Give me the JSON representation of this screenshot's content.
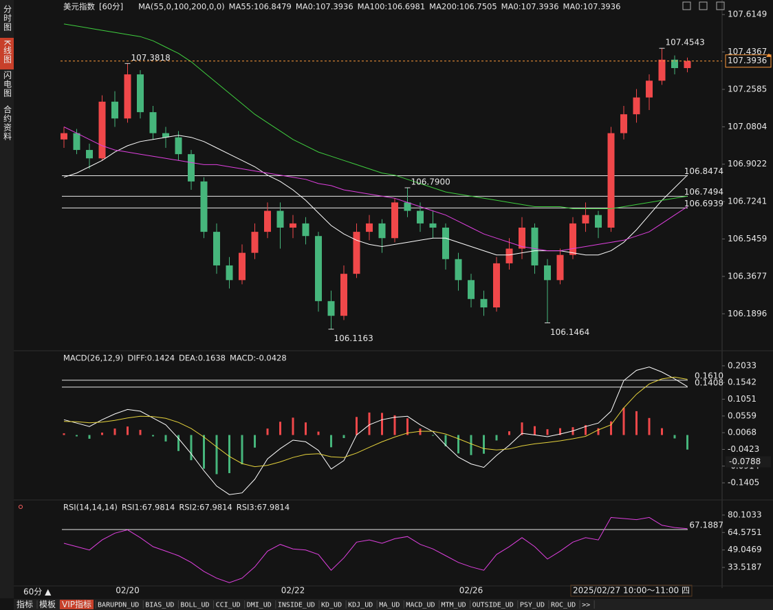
{
  "sidebar_tabs": [
    "分时图",
    "K线图",
    "闪电图",
    "合约资料"
  ],
  "active_tab": 1,
  "chart_data": [
    {
      "type": "candlestick",
      "legend": [
        {
          "text": "美元指数",
          "color": "#ffffff"
        },
        {
          "text": "[60分]",
          "color": "#ff9a3c"
        },
        {
          "text": "MA(55,0,100,200,0,0)",
          "color": "#ffffff"
        },
        {
          "text": "MA55:106.8479",
          "color": "#ffffff"
        },
        {
          "text": "MA0:107.3936",
          "color": "#e6d33c"
        },
        {
          "text": "MA100:106.6981",
          "color": "#e040e0"
        },
        {
          "text": "MA200:106.7505",
          "color": "#3fcf3f"
        },
        {
          "text": "MA0:107.3936",
          "color": "#9a9a9a"
        },
        {
          "text": "MA0:107.3936",
          "color": "#ff4a4a"
        }
      ],
      "categories": [
        null,
        null,
        null,
        null,
        null,
        "02/20",
        null,
        null,
        null,
        null,
        null,
        null,
        null,
        null,
        null,
        null,
        null,
        null,
        "02/22",
        null,
        null,
        null,
        null,
        null,
        null,
        null,
        null,
        null,
        null,
        null,
        null,
        null,
        "02/26",
        null,
        null,
        null,
        null,
        null,
        null,
        null,
        null,
        null,
        null,
        null,
        null,
        null,
        null,
        null,
        null,
        null
      ],
      "ylim": [
        106.03,
        107.645
      ],
      "yticks": [
        107.6149,
        107.4367,
        107.2585,
        107.0804,
        106.9022,
        106.7241,
        106.5459,
        106.3677,
        106.1896
      ],
      "up_color": "#f0484a",
      "down_color": "#46b67c",
      "open": [
        107.02,
        107.05,
        106.97,
        106.93,
        107.2,
        107.12,
        107.33,
        107.15,
        107.05,
        107.03,
        106.95,
        106.82,
        106.58,
        106.42,
        106.35,
        106.48,
        106.58,
        106.68,
        106.6,
        106.62,
        106.56,
        106.25,
        106.18,
        106.38,
        106.58,
        106.62,
        106.55,
        106.72,
        106.68,
        106.62,
        106.6,
        106.45,
        106.35,
        106.26,
        106.22,
        106.43,
        106.5,
        106.6,
        106.42,
        106.35,
        106.47,
        106.62,
        106.66,
        106.6,
        107.05,
        107.14,
        107.22,
        107.3,
        107.4,
        107.36
      ],
      "high": [
        107.08,
        107.07,
        107.0,
        107.23,
        107.25,
        107.3818,
        107.35,
        107.18,
        107.08,
        107.06,
        106.97,
        106.84,
        106.62,
        106.46,
        106.52,
        106.62,
        106.72,
        106.72,
        106.66,
        106.65,
        106.58,
        106.3,
        106.42,
        106.62,
        106.66,
        106.64,
        106.74,
        106.79,
        106.72,
        106.68,
        106.62,
        106.48,
        106.38,
        106.3,
        106.46,
        106.55,
        106.65,
        106.62,
        106.45,
        106.5,
        106.65,
        106.72,
        106.68,
        107.08,
        107.18,
        107.26,
        107.33,
        107.4543,
        107.42,
        107.41
      ],
      "low": [
        106.98,
        106.95,
        106.88,
        106.92,
        107.08,
        107.1,
        107.12,
        107.02,
        106.98,
        106.92,
        106.78,
        106.55,
        106.38,
        106.31,
        106.33,
        106.45,
        106.55,
        106.5,
        106.55,
        106.52,
        106.2,
        106.1163,
        106.16,
        106.36,
        106.54,
        106.48,
        106.53,
        106.65,
        106.58,
        106.55,
        106.4,
        106.3,
        106.22,
        106.18,
        106.2,
        106.4,
        106.45,
        106.38,
        106.1464,
        106.33,
        106.45,
        106.58,
        106.55,
        106.58,
        107.02,
        107.1,
        107.16,
        107.28,
        107.33,
        107.34
      ],
      "close": [
        107.05,
        106.97,
        106.93,
        107.2,
        107.12,
        107.33,
        107.15,
        107.05,
        107.03,
        106.95,
        106.82,
        106.58,
        106.42,
        106.35,
        106.48,
        106.58,
        106.68,
        106.6,
        106.62,
        106.56,
        106.25,
        106.18,
        106.38,
        106.58,
        106.62,
        106.55,
        106.72,
        106.68,
        106.62,
        106.6,
        106.45,
        106.35,
        106.26,
        106.22,
        106.43,
        106.5,
        106.6,
        106.42,
        106.35,
        106.47,
        106.62,
        106.66,
        106.6,
        107.05,
        107.14,
        107.22,
        107.3,
        107.4,
        107.36,
        107.3936
      ],
      "lines": [
        {
          "color": "#ffffff",
          "values": [
            106.84,
            106.86,
            106.89,
            106.92,
            106.96,
            106.99,
            107.01,
            107.02,
            107.03,
            107.04,
            107.03,
            107.01,
            106.98,
            106.95,
            106.92,
            106.89,
            106.85,
            106.82,
            106.78,
            106.73,
            106.67,
            106.61,
            106.57,
            106.54,
            106.52,
            106.51,
            106.52,
            106.53,
            106.54,
            106.55,
            106.55,
            106.53,
            106.51,
            106.49,
            106.47,
            106.47,
            106.48,
            106.49,
            106.49,
            106.49,
            106.48,
            106.47,
            106.47,
            106.49,
            106.53,
            106.59,
            106.66,
            106.73,
            106.79,
            106.85
          ]
        },
        {
          "color": "#e040e0",
          "values": [
            107.08,
            107.05,
            107.02,
            106.99,
            106.97,
            106.96,
            106.95,
            106.94,
            106.93,
            106.92,
            106.91,
            106.9,
            106.9,
            106.89,
            106.88,
            106.87,
            106.86,
            106.85,
            106.84,
            106.83,
            106.81,
            106.8,
            106.78,
            106.77,
            106.76,
            106.75,
            106.74,
            106.72,
            106.7,
            106.68,
            106.66,
            106.63,
            106.6,
            106.57,
            106.55,
            106.53,
            106.51,
            106.5,
            106.49,
            106.49,
            106.5,
            106.51,
            106.52,
            106.53,
            106.54,
            106.56,
            106.58,
            106.62,
            106.66,
            106.7
          ]
        },
        {
          "color": "#3fcf3f",
          "values": [
            107.57,
            107.56,
            107.55,
            107.54,
            107.53,
            107.52,
            107.51,
            107.49,
            107.46,
            107.43,
            107.39,
            107.34,
            107.29,
            107.24,
            107.19,
            107.14,
            107.1,
            107.06,
            107.02,
            106.99,
            106.96,
            106.94,
            106.92,
            106.9,
            106.88,
            106.86,
            106.85,
            106.83,
            106.81,
            106.79,
            106.77,
            106.76,
            106.75,
            106.74,
            106.73,
            106.72,
            106.71,
            106.7,
            106.7,
            106.7,
            106.69,
            106.69,
            106.69,
            106.69,
            106.7,
            106.71,
            106.72,
            106.73,
            106.74,
            106.75
          ]
        }
      ],
      "hlines": [
        106.8474,
        106.7494,
        106.6939
      ],
      "last_price": 107.3936,
      "last_price_color": "#ff9a3c",
      "annotations": {
        "highs": [
          107.3818,
          {
            "value": 106.79,
            "label": "106.7900"
          },
          107.4543
        ],
        "lows": [
          106.1163,
          106.1464
        ]
      }
    },
    {
      "type": "macd",
      "legend": [
        {
          "text": "MACD(26,12,9)",
          "color": "#ffffff"
        },
        {
          "text": "DIFF:0.1424",
          "color": "#ffffff"
        },
        {
          "text": "DEA:0.1638",
          "color": "#e6d33c"
        },
        {
          "text": "MACD:-0.0428",
          "color": "#e040e0"
        }
      ],
      "ylim": [
        -0.1767,
        0.2375
      ],
      "yticks": [
        0.2033,
        0.1542,
        0.1051,
        0.0559,
        0.0068,
        -0.0423,
        -0.0914,
        -0.1405
      ],
      "series": [
        {
          "color": "#ffffff",
          "values": [
            0.045,
            0.035,
            0.025,
            0.045,
            0.062,
            0.075,
            0.07,
            0.05,
            0.03,
            -0.01,
            -0.055,
            -0.105,
            -0.15,
            -0.175,
            -0.17,
            -0.13,
            -0.07,
            -0.04,
            -0.015,
            -0.02,
            -0.045,
            -0.1,
            -0.075,
            0.0,
            0.03,
            0.045,
            0.052,
            0.055,
            0.03,
            0.01,
            -0.03,
            -0.065,
            -0.085,
            -0.095,
            -0.06,
            -0.03,
            0.005,
            0.0,
            -0.005,
            0.003,
            0.012,
            0.025,
            0.035,
            0.07,
            0.16,
            0.19,
            0.2,
            0.185,
            0.165,
            0.1424
          ]
        },
        {
          "color": "#e6d33c",
          "values": [
            0.04,
            0.039,
            0.036,
            0.038,
            0.043,
            0.05,
            0.055,
            0.054,
            0.049,
            0.037,
            0.019,
            -0.006,
            -0.035,
            -0.063,
            -0.084,
            -0.093,
            -0.089,
            -0.079,
            -0.066,
            -0.057,
            -0.055,
            -0.064,
            -0.066,
            -0.053,
            -0.036,
            -0.02,
            -0.006,
            0.006,
            0.011,
            0.011,
            0.003,
            -0.011,
            -0.026,
            -0.04,
            -0.044,
            -0.041,
            -0.032,
            -0.026,
            -0.022,
            -0.017,
            -0.011,
            -0.004,
            0.015,
            0.03,
            0.08,
            0.12,
            0.15,
            0.165,
            0.17,
            0.1638
          ]
        }
      ],
      "histogram": [
        0.005,
        -0.004,
        -0.011,
        0.007,
        0.019,
        0.025,
        0.015,
        -0.004,
        -0.019,
        -0.047,
        -0.074,
        -0.099,
        -0.115,
        -0.112,
        -0.086,
        -0.037,
        0.019,
        0.039,
        0.051,
        0.037,
        0.01,
        -0.036,
        -0.009,
        0.053,
        0.066,
        0.065,
        0.058,
        0.049,
        0.019,
        -0.001,
        -0.033,
        -0.054,
        -0.059,
        -0.055,
        -0.016,
        0.011,
        0.037,
        0.026,
        0.017,
        0.02,
        0.023,
        0.029,
        0.02,
        0.04,
        0.08,
        0.07,
        0.05,
        0.02,
        -0.01,
        -0.0428
      ],
      "up_color": "#f0484a",
      "down_color": "#46b67c",
      "hlines": [
        {
          "value": 0.161,
          "label": "0.1610"
        },
        0.1408
      ],
      "current": -0.0788,
      "current_color": "#ff9a3c"
    },
    {
      "type": "line",
      "legend": [
        {
          "text": "RSI(14,14,14)",
          "color": "#ffffff"
        },
        {
          "text": "RSI1:67.9814",
          "color": "#ffffff"
        },
        {
          "text": "RSI2:67.9814",
          "color": "#e6d33c"
        },
        {
          "text": "RSI3:67.9814",
          "color": "#e040e0"
        }
      ],
      "ylim": [
        18.3,
        90.45
      ],
      "yticks": [
        80.1033,
        64.5751,
        49.0469,
        33.5187
      ],
      "series": [
        {
          "color": "#e040e0",
          "values": [
            55,
            52,
            49,
            58,
            64,
            67,
            60,
            52,
            48,
            44,
            38,
            30,
            24,
            20,
            24,
            34,
            48,
            54,
            50,
            49,
            45,
            31,
            42,
            56,
            58,
            55,
            59,
            61,
            54,
            50,
            44,
            38,
            34,
            31,
            45,
            52,
            60,
            52,
            41,
            48,
            56,
            60,
            58,
            78,
            77,
            76,
            78,
            71,
            69,
            67.9814
          ]
        }
      ],
      "hlines": [
        67.1887
      ]
    }
  ],
  "footer": {
    "period": "60分 ▲",
    "time": "2025/02/27 10:00～11:00 四"
  },
  "toolbar": [
    "指标",
    "模板",
    "VIP指标",
    "BARUPDN_UD",
    "BIAS_UD",
    "BOLL_UD",
    "CCI_UD",
    "DMI_UD",
    "INSIDE_UD",
    "KD_UD",
    "KDJ_UD",
    "MA_UD",
    "MACD_UD",
    "MTM_UD",
    "OUTSIDE_UD",
    "PSY_UD",
    "ROC_UD",
    ">>"
  ],
  "toolbar_active": 2
}
